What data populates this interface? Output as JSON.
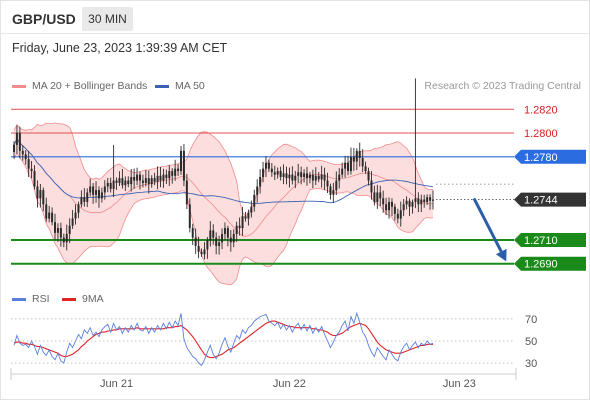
{
  "header": {
    "symbol": "GBP/USD",
    "timeframe": "30 MIN"
  },
  "datetime": "Friday, June 23, 2023 1:39:39 AM CET",
  "credit": "Research © 2023 Trading Central",
  "colors": {
    "candle": "#2b2b2b",
    "bb_line": "#f28b8b",
    "bb_fill": "#fbd3d3",
    "ma50": "#3b63b3",
    "resistance": "#e05050",
    "support": "#1a8a1a",
    "pivot": "#2b6de0",
    "last": "#333333",
    "arrow": "#2a5fa8",
    "rsi": "#5b7fdc",
    "rsi_ma": "#e02424",
    "label_red": "#d92020"
  },
  "chart_data": [
    {
      "type": "candlestick",
      "title": "",
      "legend": [
        {
          "name": "MA 20 + Bollinger Bands",
          "color": "#f28b8b"
        },
        {
          "name": "MA 50",
          "color": "#3b63b3"
        }
      ],
      "x_ticks": [
        {
          "label": "Jun 21",
          "bar": 35
        },
        {
          "label": "Jun 22",
          "bar": 94
        },
        {
          "label": "Jun 23",
          "bar": 152
        }
      ],
      "ylim": [
        1.2678,
        1.2832
      ],
      "levels": [
        {
          "value": 1.282,
          "label": "1.2820",
          "kind": "resistance"
        },
        {
          "value": 1.28,
          "label": "1.2800",
          "kind": "resistance"
        },
        {
          "value": 1.278,
          "label": "1.2780",
          "kind": "pivot"
        },
        {
          "value": 1.271,
          "label": "1.2710",
          "kind": "support"
        },
        {
          "value": 1.269,
          "label": "1.2690",
          "kind": "support"
        }
      ],
      "last_price": {
        "value": 1.2744,
        "label": "1.2744"
      },
      "forecast_arrow": {
        "from_bar": 157,
        "from_price": 1.2745,
        "to_bar": 168,
        "to_price": 1.2692
      },
      "close": [
        1.279,
        1.28,
        1.2785,
        1.2782,
        1.2778,
        1.277,
        1.2768,
        1.2755,
        1.2745,
        1.2752,
        1.274,
        1.2728,
        1.2733,
        1.2725,
        1.2716,
        1.272,
        1.2712,
        1.2708,
        1.2715,
        1.2722,
        1.2728,
        1.2733,
        1.274,
        1.2746,
        1.2742,
        1.275,
        1.2755,
        1.2748,
        1.2752,
        1.2745,
        1.275,
        1.2755,
        1.2758,
        1.2753,
        1.276,
        1.2758,
        1.2762,
        1.2756,
        1.276,
        1.2757,
        1.2763,
        1.276,
        1.2765,
        1.276,
        1.2758,
        1.2762,
        1.2757,
        1.2762,
        1.2759,
        1.2764,
        1.276,
        1.2765,
        1.2762,
        1.2768,
        1.2764,
        1.277,
        1.2768,
        1.2785,
        1.276,
        1.274,
        1.272,
        1.2712,
        1.2705,
        1.27,
        1.2698,
        1.2702,
        1.271,
        1.2718,
        1.2712,
        1.2705,
        1.2708,
        1.2715,
        1.272,
        1.2712,
        1.2708,
        1.2715,
        1.2722,
        1.272,
        1.273,
        1.2728,
        1.2733,
        1.2738,
        1.2748,
        1.2755,
        1.2763,
        1.277,
        1.2775,
        1.277,
        1.2767,
        1.2765,
        1.2768,
        1.2763,
        1.2766,
        1.2762,
        1.2765,
        1.276,
        1.2764,
        1.2767,
        1.2763,
        1.2766,
        1.2762,
        1.2765,
        1.276,
        1.2764,
        1.2761,
        1.2765,
        1.276,
        1.2755,
        1.2748,
        1.2752,
        1.276,
        1.2765,
        1.277,
        1.2775,
        1.2768,
        1.278,
        1.2776,
        1.2785,
        1.2779,
        1.2772,
        1.2768,
        1.276,
        1.275,
        1.2742,
        1.275,
        1.2745,
        1.274,
        1.2735,
        1.2742,
        1.2738,
        1.2732,
        1.2728,
        1.2735,
        1.274,
        1.2743,
        1.2738,
        1.2742,
        1.2745,
        1.274,
        1.2744,
        1.2742,
        1.2746,
        1.2743,
        1.2744
      ],
      "highs": [
        {
          "bar": 34,
          "value": 1.279
        },
        {
          "bar": 137,
          "value": 1.2846
        }
      ]
    },
    {
      "type": "line",
      "title": "",
      "legend": [
        {
          "name": "RSI",
          "color": "#5b7fdc"
        },
        {
          "name": "9MA",
          "color": "#e02424"
        }
      ],
      "ylim": [
        22,
        78
      ],
      "y_ticks": [
        70,
        50,
        30
      ],
      "series": [
        {
          "name": "RSI",
          "values": [
            46,
            55,
            48,
            46,
            47,
            44,
            50,
            45,
            38,
            46,
            40,
            37,
            42,
            36,
            33,
            39,
            32,
            30,
            40,
            48,
            44,
            50,
            56,
            52,
            60,
            57,
            62,
            55,
            58,
            54,
            60,
            63,
            65,
            58,
            66,
            60,
            63,
            57,
            62,
            58,
            64,
            60,
            66,
            60,
            59,
            63,
            57,
            62,
            58,
            64,
            60,
            66,
            61,
            67,
            62,
            68,
            64,
            75,
            52,
            44,
            40,
            36,
            34,
            30,
            28,
            33,
            40,
            46,
            38,
            34,
            39,
            47,
            53,
            45,
            40,
            48,
            55,
            52,
            60,
            57,
            62,
            64,
            68,
            70,
            72,
            73,
            74,
            68,
            66,
            64,
            67,
            61,
            65,
            60,
            64,
            58,
            63,
            66,
            60,
            65,
            59,
            64,
            57,
            62,
            58,
            63,
            56,
            50,
            44,
            49,
            55,
            58,
            64,
            68,
            59,
            72,
            66,
            75,
            67,
            58,
            54,
            46,
            40,
            36,
            44,
            40,
            36,
            33,
            42,
            38,
            34,
            32,
            40,
            45,
            48,
            42,
            46,
            49,
            44,
            48,
            46,
            50,
            47,
            48
          ]
        },
        {
          "name": "9MA",
          "values": [
            48,
            49,
            49,
            48,
            48,
            47,
            47,
            46,
            45,
            45,
            44,
            43,
            42,
            41,
            40,
            39,
            37,
            36,
            36,
            37,
            38,
            40,
            42,
            45,
            47,
            50,
            52,
            54,
            56,
            57,
            58,
            58,
            59,
            59,
            60,
            60,
            61,
            61,
            61,
            61,
            61,
            61,
            62,
            61,
            61,
            61,
            61,
            61,
            61,
            61,
            61,
            61,
            62,
            62,
            62,
            63,
            63,
            64,
            62,
            60,
            57,
            54,
            50,
            46,
            42,
            38,
            36,
            35,
            35,
            36,
            37,
            38,
            40,
            42,
            43,
            44,
            46,
            48,
            50,
            52,
            54,
            56,
            58,
            60,
            62,
            64,
            66,
            67,
            68,
            68,
            67,
            66,
            65,
            64,
            63,
            63,
            62,
            62,
            62,
            62,
            62,
            62,
            61,
            61,
            60,
            60,
            59,
            58,
            56,
            55,
            55,
            56,
            57,
            59,
            61,
            63,
            64,
            65,
            66,
            65,
            64,
            61,
            57,
            53,
            49,
            46,
            44,
            42,
            41,
            40,
            39,
            39,
            39,
            40,
            41,
            42,
            43,
            44,
            45,
            46,
            46,
            47,
            47,
            47
          ]
        }
      ]
    }
  ]
}
